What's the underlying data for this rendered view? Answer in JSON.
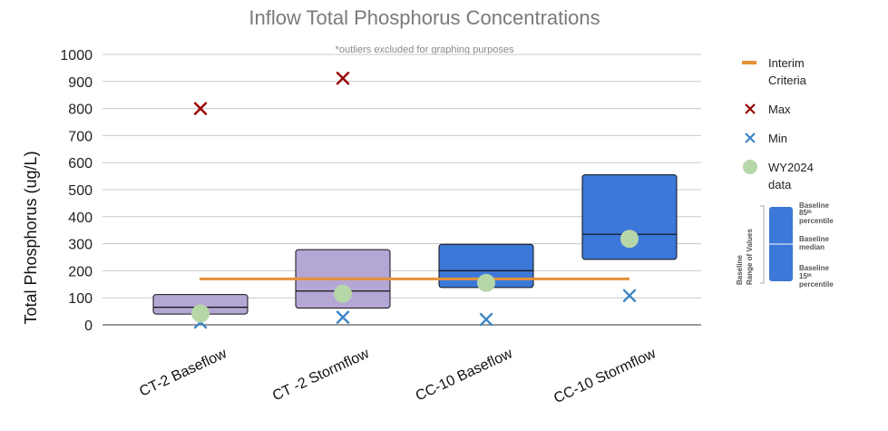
{
  "chart_data": {
    "type": "box",
    "title": "Inflow Total Phosphorus Concentrations",
    "subtitle": "*outliers excluded for graphing purposes",
    "ylabel": "Total Phosphorus (ug/L)",
    "ylim": [
      0,
      1000
    ],
    "yticks": [
      0,
      100,
      200,
      300,
      400,
      500,
      600,
      700,
      800,
      900,
      1000
    ],
    "grid": true,
    "categories": [
      "CT-2 Baseflow",
      "CT -2 Stormflow",
      "CC-10 Baseflow",
      "CC-10 Stormflow"
    ],
    "boxes": [
      {
        "category": "CT-2 Baseflow",
        "p15": 40,
        "median": 65,
        "p85": 112,
        "color": "#b4a7d6"
      },
      {
        "category": "CT -2 Stormflow",
        "p15": 62,
        "median": 125,
        "p85": 278,
        "color": "#b4a7d6"
      },
      {
        "category": "CC-10 Baseflow",
        "p15": 138,
        "median": 200,
        "p85": 298,
        "color": "#3c78d8"
      },
      {
        "category": "CC-10 Stormflow",
        "p15": 242,
        "median": 335,
        "p85": 555,
        "color": "#3c78d8"
      }
    ],
    "max": [
      800,
      912,
      null,
      null
    ],
    "min": [
      10,
      28,
      20,
      108
    ],
    "wy2024": [
      42,
      115,
      155,
      318
    ],
    "interim_criteria": 170,
    "colors": {
      "interim": "#e69138",
      "max": "#980000",
      "min": "#3d85c6",
      "wy2024": "#b6d7a8",
      "baseline_key": "#3c78d8"
    }
  },
  "legend": {
    "interim": [
      "Interim",
      "Criteria"
    ],
    "max": "Max",
    "min": "Min",
    "wy2024": [
      "WY2024",
      "data"
    ]
  },
  "key": {
    "side": [
      "Baseline",
      "Range of Values"
    ],
    "p85": [
      "Baseline",
      "85ᵗʰ",
      "percentile"
    ],
    "median": [
      "Baseline",
      "median"
    ],
    "p15": [
      "Baseline",
      "15ᵗʰ",
      "percentile"
    ]
  }
}
